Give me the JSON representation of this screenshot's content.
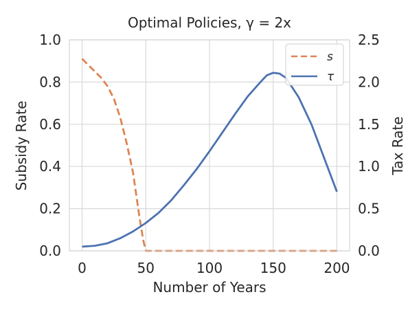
{
  "chart_data": {
    "type": "line",
    "title": "Optimal Policies, γ = 2x",
    "xlabel": "Number of Years",
    "ylabel_left": "Subsidy Rate",
    "ylabel_right": "Tax Rate",
    "xlim": [
      -10,
      210
    ],
    "ylim_left": [
      0,
      1.0
    ],
    "ylim_right": [
      0,
      2.5
    ],
    "x_ticks": [
      "0",
      "50",
      "100",
      "150",
      "200"
    ],
    "y_left_ticks": [
      "0.0",
      "0.2",
      "0.4",
      "0.6",
      "0.8",
      "1.0"
    ],
    "y_right_ticks": [
      "0.0",
      "0.5",
      "1.0",
      "1.5",
      "2.0",
      "2.5"
    ],
    "grid": true,
    "legend_position": "top-right",
    "colors": {
      "s": "#dd8452",
      "tau": "#4c72b0"
    },
    "series": [
      {
        "name": "s",
        "axis": "left",
        "style": "dashed",
        "x": [
          0,
          5,
          10,
          15,
          20,
          25,
          30,
          35,
          40,
          45,
          48,
          50,
          55,
          100,
          150,
          200
        ],
        "values": [
          0.91,
          0.88,
          0.85,
          0.82,
          0.78,
          0.72,
          0.63,
          0.51,
          0.37,
          0.16,
          0.05,
          0.0,
          0.0,
          0.0,
          0.0,
          0.0
        ]
      },
      {
        "name": "τ",
        "axis": "right",
        "style": "solid",
        "x": [
          0,
          10,
          20,
          30,
          40,
          50,
          60,
          70,
          80,
          90,
          100,
          110,
          120,
          130,
          140,
          145,
          150,
          155,
          160,
          170,
          180,
          190,
          200
        ],
        "values": [
          0.05,
          0.06,
          0.09,
          0.15,
          0.23,
          0.33,
          0.45,
          0.6,
          0.78,
          0.97,
          1.18,
          1.4,
          1.62,
          1.83,
          2.0,
          2.08,
          2.11,
          2.1,
          2.05,
          1.82,
          1.5,
          1.1,
          0.7
        ]
      }
    ]
  }
}
